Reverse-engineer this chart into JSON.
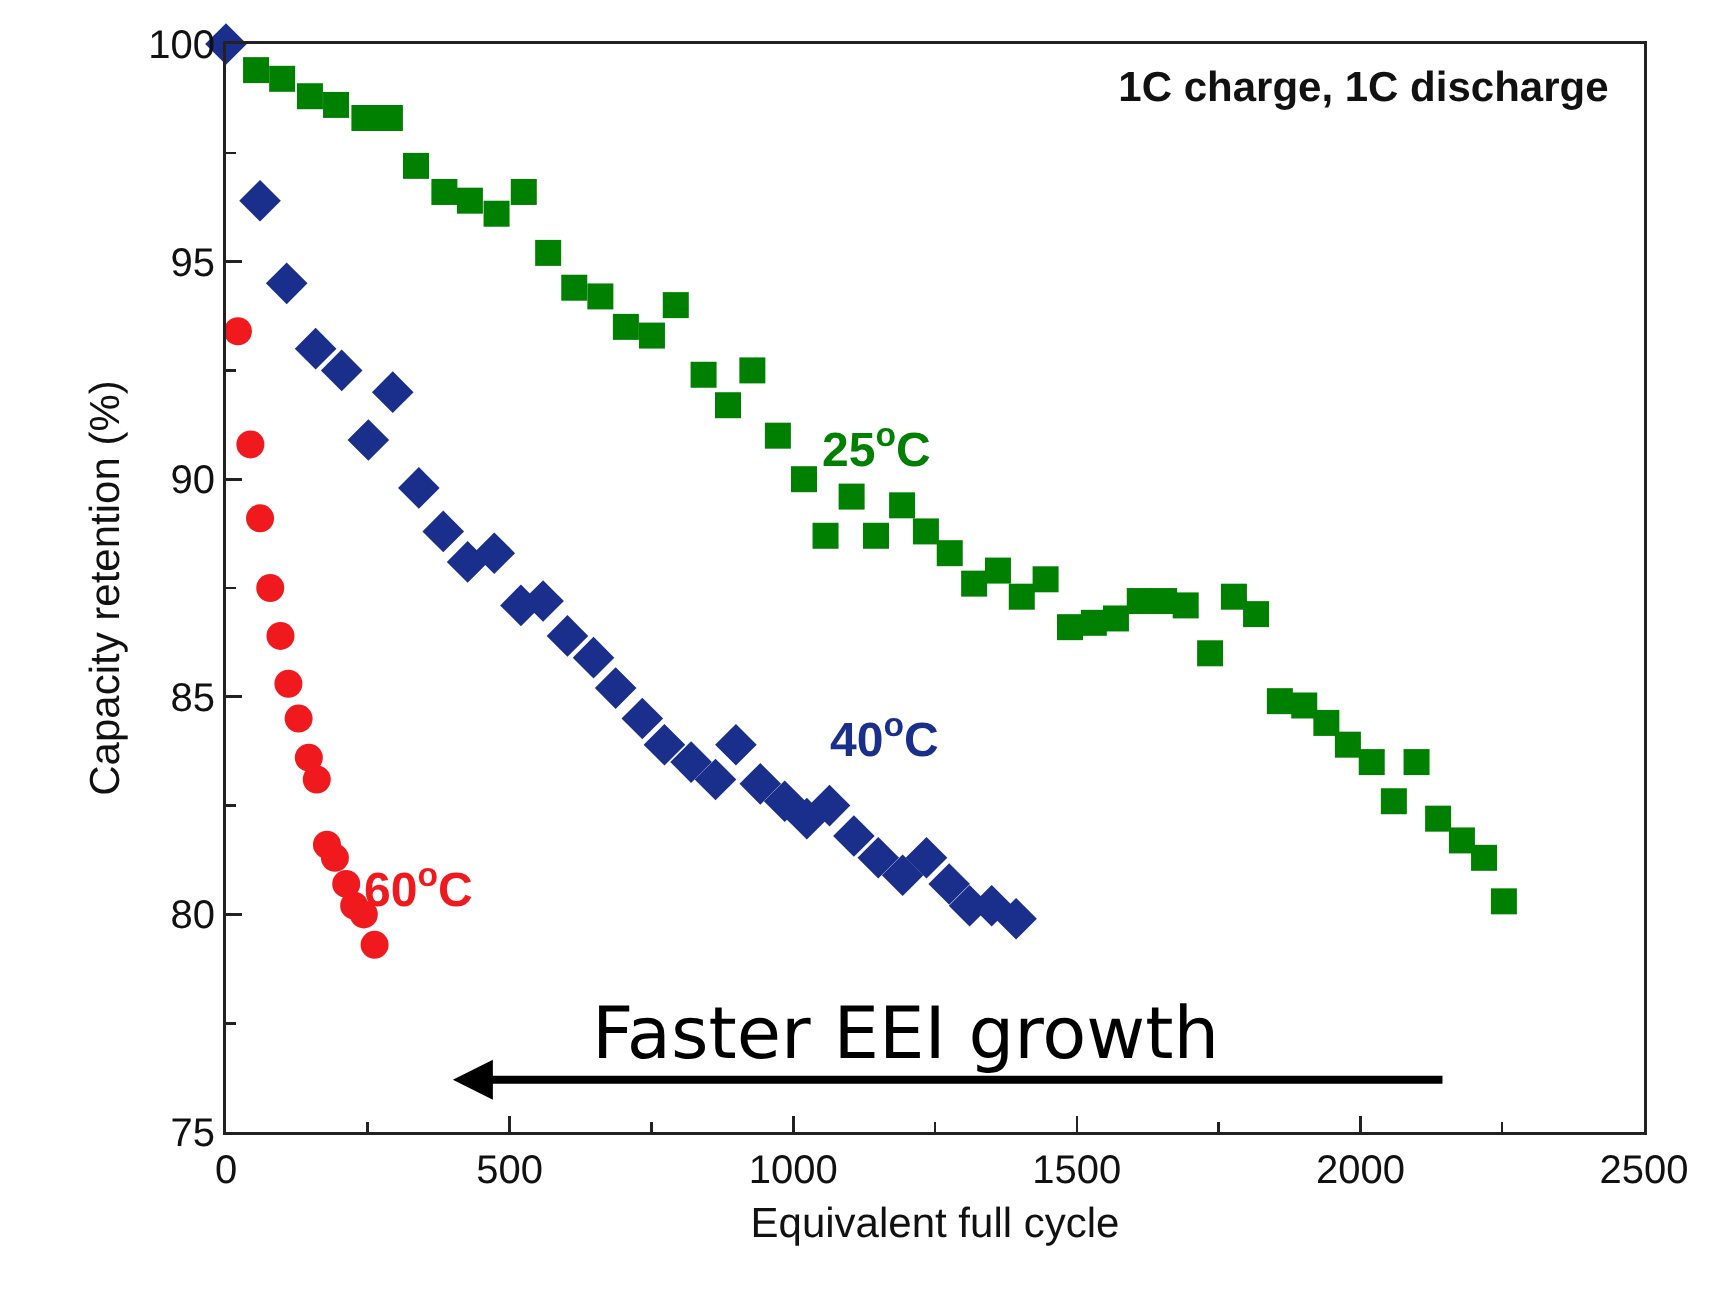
{
  "chart_data": {
    "type": "scatter",
    "title": "1C charge, 1C discharge",
    "xlabel": "Equivalent full cycle",
    "ylabel": "Capacity retention (%)",
    "xlim": [
      0,
      2500
    ],
    "ylim": [
      75,
      100
    ],
    "xticks": [
      0,
      {
        "value": 250,
        "label": null
      },
      500,
      {
        "value": 750,
        "label": null
      },
      1000,
      {
        "value": 1250,
        "label": null
      },
      1500,
      {
        "value": 1750,
        "label": null
      },
      2000,
      {
        "value": 2250,
        "label": null
      },
      2500
    ],
    "yticks": [
      75,
      {
        "value": 77.5,
        "label": null
      },
      80,
      {
        "value": 82.5,
        "label": null
      },
      85,
      {
        "value": 87.5,
        "label": null
      },
      90,
      {
        "value": 92.5,
        "label": null
      },
      95,
      {
        "value": 97.5,
        "label": null
      },
      100
    ],
    "grid": false,
    "legend": false,
    "series": [
      {
        "name": "25$^{o}$C",
        "color": "#008000",
        "marker": "square",
        "x": [
          53,
          99,
          148,
          194,
          244,
          289,
          335,
          385,
          430,
          477,
          525,
          568,
          614,
          660,
          705,
          751,
          793,
          842,
          885,
          928,
          973,
          1019,
          1057,
          1103,
          1146,
          1192,
          1234,
          1276,
          1319,
          1361,
          1403,
          1445,
          1488,
          1530,
          1569,
          1611,
          1654,
          1692,
          1735,
          1777,
          1816,
          1858,
          1901,
          1940,
          1978,
          2020,
          2059,
          2099,
          2137,
          2179,
          2218,
          2253
        ],
        "values": [
          99.4,
          99.2,
          98.8,
          98.6,
          98.3,
          98.3,
          97.2,
          96.6,
          96.4,
          96.1,
          96.6,
          95.2,
          94.4,
          94.2,
          93.5,
          93.3,
          94.0,
          92.4,
          91.7,
          92.5,
          91.0,
          90.0,
          88.7,
          89.6,
          88.7,
          89.4,
          88.8,
          88.3,
          87.6,
          87.9,
          87.3,
          87.7,
          86.6,
          86.7,
          86.8,
          87.2,
          87.2,
          87.1,
          86.0,
          87.3,
          86.9,
          84.9,
          84.8,
          84.4,
          83.9,
          83.5,
          82.6,
          83.5,
          82.2,
          81.7,
          81.3,
          80.3
        ]
      },
      {
        "name": "40$^{o}$C",
        "color": "#1a2e8c",
        "marker": "diamond",
        "x": [
          0,
          60,
          107,
          158,
          204,
          251,
          294,
          340,
          383,
          426,
          473,
          520,
          559,
          602,
          648,
          687,
          734,
          773,
          820,
          863,
          899,
          942,
          985,
          1024,
          1064,
          1107,
          1150,
          1193,
          1235,
          1275,
          1311,
          1350,
          1393
        ],
        "values": [
          100,
          96.4,
          94.5,
          93.0,
          92.5,
          90.9,
          92.0,
          89.8,
          88.8,
          88.1,
          88.3,
          87.1,
          87.2,
          86.4,
          85.9,
          85.2,
          84.5,
          83.9,
          83.5,
          83.1,
          83.9,
          83.0,
          82.6,
          82.2,
          82.5,
          81.8,
          81.3,
          80.9,
          81.3,
          80.7,
          80.2,
          80.2,
          79.9
        ]
      },
      {
        "name": "60$^{o}$C",
        "color": "#f0191e",
        "marker": "circle",
        "x": [
          21,
          43,
          60,
          78,
          96,
          110,
          128,
          146,
          160,
          178,
          192,
          212,
          226,
          243,
          262
        ],
        "values": [
          93.4,
          90.8,
          89.1,
          87.5,
          86.4,
          85.3,
          84.5,
          83.6,
          83.1,
          81.6,
          81.3,
          80.7,
          80.2,
          80.0,
          79.3
        ]
      }
    ],
    "annotations": [
      "Faster EEI growth"
    ]
  }
}
